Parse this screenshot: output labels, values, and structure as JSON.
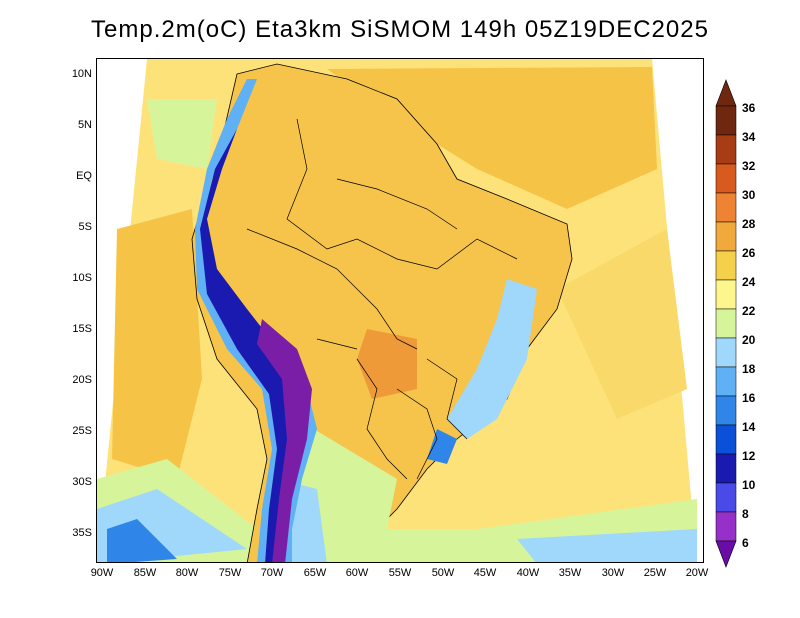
{
  "header": {
    "title": "Temp.2m(oC) Eta3km SiSMOM 149h 05Z19DEC2025"
  },
  "map": {
    "lat_labels": [
      "10N",
      "5N",
      "EQ",
      "5S",
      "10S",
      "15S",
      "20S",
      "25S",
      "30S",
      "35S"
    ],
    "lon_labels": [
      "90W",
      "85W",
      "80W",
      "75W",
      "70W",
      "65W",
      "60W",
      "55W",
      "50W",
      "45W",
      "40W",
      "35W",
      "30W",
      "25W",
      "20W"
    ],
    "ocean_color": "#fde27a",
    "land_warm_color": "#f6c34b",
    "andes_cold_color": "#7a1ea8"
  },
  "colorbar": {
    "labels": [
      "6",
      "8",
      "10",
      "12",
      "14",
      "16",
      "18",
      "20",
      "22",
      "24",
      "26",
      "28",
      "30",
      "32",
      "34",
      "36"
    ],
    "colors": [
      "#6a0da8",
      "#9630c8",
      "#4a4ae8",
      "#1a1ab0",
      "#0a50d8",
      "#2f86e8",
      "#5fb0f4",
      "#9fd8fa",
      "#d6f59a",
      "#fdf68c",
      "#f5d04a",
      "#f2a93b",
      "#ee8433",
      "#d95a1e",
      "#a83c14",
      "#6f2710"
    ]
  }
}
